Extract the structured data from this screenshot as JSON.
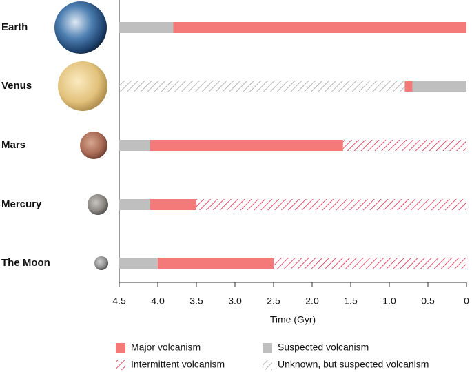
{
  "chart_data": {
    "type": "timeline",
    "categories": [
      "Earth",
      "Venus",
      "Mars",
      "Mercury",
      "The Moon"
    ],
    "xlabel": "Time (Gyr)",
    "xlim": [
      4.5,
      0
    ],
    "xticks": [
      4.5,
      {
        "value": 4,
        "label": "4.0"
      },
      3.5,
      {
        "value": 3,
        "label": "3.0"
      },
      2.5,
      {
        "value": 2,
        "label": "2.0"
      },
      1.5,
      {
        "value": 1,
        "label": "1.0"
      },
      0.5,
      0
    ],
    "series": [
      {
        "name": "Major volcanism",
        "color": "#f47a7a",
        "hatched": false,
        "intervals": [
          {
            "row": 0,
            "start": 4.5,
            "end": 0
          },
          {
            "row": 1,
            "start": 0.8,
            "end": 0.7
          },
          {
            "row": 2,
            "start": 4.1,
            "end": 1.6
          },
          {
            "row": 3,
            "start": 4.1,
            "end": 3.5
          },
          {
            "row": 4,
            "start": 4.0,
            "end": 2.5
          }
        ]
      },
      {
        "name": "Intermittent volcanism",
        "color": "#e8506e",
        "hatched": true,
        "intervals": [
          {
            "row": 2,
            "start": 1.6,
            "end": 0
          },
          {
            "row": 3,
            "start": 3.5,
            "end": 0
          },
          {
            "row": 4,
            "start": 2.5,
            "end": 0
          }
        ]
      },
      {
        "name": "Suspected volcanism",
        "color": "#bfbfbf",
        "hatched": false,
        "intervals": [
          {
            "row": 0,
            "start": 4.5,
            "end": 3.8
          },
          {
            "row": 1,
            "start": 0.7,
            "end": 0
          },
          {
            "row": 2,
            "start": 4.5,
            "end": 4.1
          },
          {
            "row": 3,
            "start": 4.5,
            "end": 4.1
          },
          {
            "row": 4,
            "start": 4.5,
            "end": 4.0
          }
        ]
      },
      {
        "name": "Unknown, but suspected volcanism",
        "color": "#b5b5b5",
        "hatched": true,
        "intervals": [
          {
            "row": 1,
            "start": 4.5,
            "end": 0.8
          }
        ]
      }
    ]
  }
}
